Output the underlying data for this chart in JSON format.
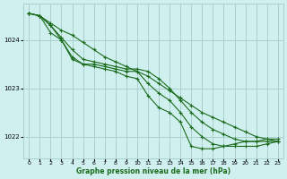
{
  "title": "",
  "xlabel": "Graphe pression niveau de la mer (hPa)",
  "background_color": "#d0f0f0",
  "grid_color": "#aacfcf",
  "line_color": "#1a6b1a",
  "marker_color": "#1a6b1a",
  "xlim": [
    -0.5,
    23.5
  ],
  "ylim": [
    1021.55,
    1024.75
  ],
  "yticks": [
    1022,
    1023,
    1024
  ],
  "xticks": [
    0,
    1,
    2,
    3,
    4,
    5,
    6,
    7,
    8,
    9,
    10,
    11,
    12,
    13,
    14,
    15,
    16,
    17,
    18,
    19,
    20,
    21,
    22,
    23
  ],
  "series": [
    [
      1024.55,
      1024.5,
      1024.35,
      1024.2,
      1024.1,
      1023.95,
      1023.8,
      1023.65,
      1023.55,
      1023.45,
      1023.35,
      1023.25,
      1023.1,
      1022.95,
      1022.8,
      1022.65,
      1022.5,
      1022.4,
      1022.3,
      1022.2,
      1022.1,
      1022.0,
      1021.95,
      1021.9
    ],
    [
      1024.55,
      1024.5,
      1024.3,
      1024.05,
      1023.8,
      1023.6,
      1023.55,
      1023.5,
      1023.45,
      1023.4,
      1023.4,
      1023.35,
      1023.2,
      1023.0,
      1022.75,
      1022.5,
      1022.3,
      1022.15,
      1022.05,
      1021.95,
      1021.9,
      1021.9,
      1021.9,
      1021.9
    ],
    [
      1024.55,
      1024.5,
      1024.3,
      1024.0,
      1023.65,
      1023.5,
      1023.5,
      1023.45,
      1023.4,
      1023.35,
      1023.35,
      1023.1,
      1022.9,
      1022.75,
      1022.5,
      1022.2,
      1022.0,
      1021.85,
      1021.8,
      1021.8,
      1021.8,
      1021.8,
      1021.85,
      1021.9
    ],
    [
      1024.55,
      1024.5,
      1024.15,
      1024.0,
      1023.6,
      1023.5,
      1023.45,
      1023.4,
      1023.35,
      1023.25,
      1023.2,
      1022.85,
      1022.6,
      1022.5,
      1022.3,
      1021.8,
      1021.75,
      1021.75,
      1021.8,
      1021.85,
      1021.9,
      1021.9,
      1021.95,
      1021.95
    ]
  ]
}
